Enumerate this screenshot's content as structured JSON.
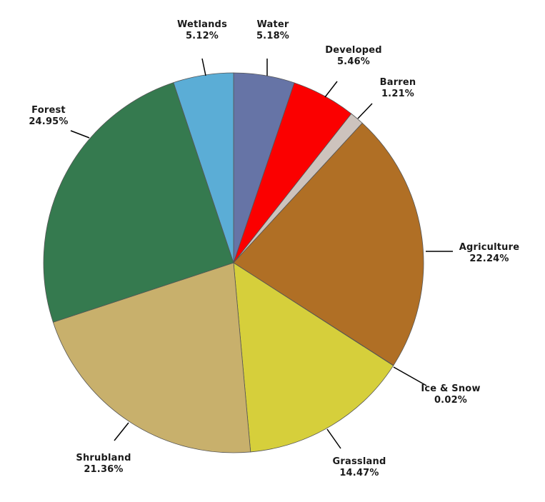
{
  "chart_data": {
    "type": "pie",
    "title": "",
    "start": "12 o'clock",
    "direction": "clockwise",
    "slices": [
      {
        "label": "Water",
        "percent_label": "5.18%",
        "value": 5.18,
        "color": "#6674a6"
      },
      {
        "label": "Developed",
        "percent_label": "5.46%",
        "value": 5.46,
        "color": "#fb0000"
      },
      {
        "label": "Barren",
        "percent_label": "1.21%",
        "value": 1.21,
        "color": "#cdc3bd"
      },
      {
        "label": "Agriculture",
        "percent_label": "22.24%",
        "value": 22.24,
        "color": "#b06f25"
      },
      {
        "label": "Ice & Snow",
        "percent_label": "0.02%",
        "value": 0.02,
        "color": "#ffffff"
      },
      {
        "label": "Grassland",
        "percent_label": "14.47%",
        "value": 14.47,
        "color": "#d6cf3b"
      },
      {
        "label": "Shrubland",
        "percent_label": "21.36%",
        "value": 21.36,
        "color": "#c8b06c"
      },
      {
        "label": "Forest",
        "percent_label": "24.95%",
        "value": 24.95,
        "color": "#357a4f"
      },
      {
        "label": "Wetlands",
        "percent_label": "5.12%",
        "value": 5.12,
        "color": "#5badd6"
      }
    ]
  }
}
